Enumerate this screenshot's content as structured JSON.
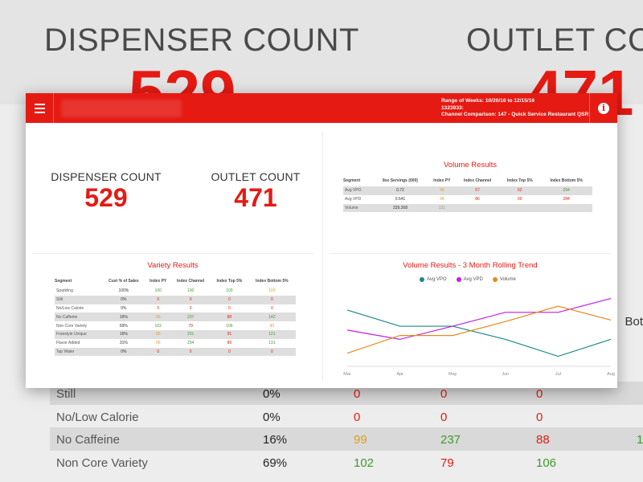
{
  "background": {
    "dispenser_title": "DISPENSER COUNT",
    "dispenser_value": "529",
    "outlet_title": "OUTLET COU",
    "outlet_value": "471",
    "side_header": "Bot",
    "rows": [
      {
        "label": "Still",
        "c1": "0%",
        "c2": "0",
        "c3": "0",
        "c4": "0",
        "c5": "",
        "shaded": true
      },
      {
        "label": "No/Low Calorie",
        "c1": "0%",
        "c2": "0",
        "c3": "0",
        "c4": "0",
        "c5": "",
        "shaded": false
      },
      {
        "label": "No Caffeine",
        "c1": "16%",
        "c2": "99",
        "c3": "237",
        "c4": "88",
        "c5": "1",
        "shaded": true
      },
      {
        "label": "Non Core Variety",
        "c1": "69%",
        "c2": "102",
        "c3": "79",
        "c4": "106",
        "c5": "",
        "shaded": false
      }
    ]
  },
  "header": {
    "range_line": "Range of Weeks: 10/20/16 to 12/15/16",
    "id_line": "1323933:",
    "channel_line": "Channel Comparison: 147 - Quick Service Restaurant QSR"
  },
  "kpis": {
    "dispenser_label": "DISPENSER COUNT",
    "dispenser_value": "529",
    "outlet_label": "OUTLET COUNT",
    "outlet_value": "471"
  },
  "volume": {
    "title": "Volume Results",
    "headers": [
      "Segment",
      "8oz Servings (000)",
      "Index PY",
      "Index Channel",
      "Index Top 5%",
      "Index Bottom 5%"
    ],
    "rows": [
      {
        "cells": [
          "Avg VPO",
          "0.72",
          "99",
          "57",
          "52",
          "294"
        ],
        "cls": [
          "",
          "",
          "o",
          "r",
          "r",
          "g"
        ],
        "shaded": true
      },
      {
        "cells": [
          "Avg VPD",
          "0.641",
          "94",
          "86",
          "69",
          "284"
        ],
        "cls": [
          "",
          "",
          "o",
          "r",
          "r",
          "r"
        ],
        "shaded": false
      },
      {
        "cells": [
          "Volume",
          "339.268",
          "131",
          "",
          "",
          ""
        ],
        "cls": [
          "",
          "",
          "gr",
          "",
          "",
          ""
        ],
        "shaded": true
      }
    ]
  },
  "variety": {
    "title": "Variety Results",
    "headers": [
      "Segment",
      "Cust % of Sales",
      "Index PY",
      "Index Channel",
      "Index Top 5%",
      "Index Bottom 5%"
    ],
    "rows": [
      {
        "cells": [
          "Sparkling",
          "100%",
          "100",
          "100",
          "100",
          "100"
        ],
        "cls": [
          "",
          "",
          "g",
          "g",
          "g",
          "o"
        ],
        "shaded": false
      },
      {
        "cells": [
          "Still",
          "0%",
          "0",
          "0",
          "0",
          "0"
        ],
        "cls": [
          "",
          "",
          "r",
          "r",
          "r",
          "r"
        ],
        "shaded": true
      },
      {
        "cells": [
          "No/Low Calorie",
          "0%",
          "0",
          "0",
          "0",
          "0"
        ],
        "cls": [
          "",
          "",
          "r",
          "r",
          "r",
          "r"
        ],
        "shaded": false
      },
      {
        "cells": [
          "No Caffeine",
          "16%",
          "99",
          "237",
          "88",
          "142"
        ],
        "cls": [
          "",
          "",
          "o",
          "g",
          "r",
          "g"
        ],
        "shaded": true
      },
      {
        "cells": [
          "Non Core Variety",
          "69%",
          "102",
          "79",
          "106",
          "90"
        ],
        "cls": [
          "",
          "",
          "g",
          "r",
          "g",
          "o"
        ],
        "shaded": false
      },
      {
        "cells": [
          "Freestyle Unique",
          "16%",
          "95",
          "231",
          "91",
          "121"
        ],
        "cls": [
          "",
          "",
          "o",
          "g",
          "r",
          "g"
        ],
        "shaded": true
      },
      {
        "cells": [
          "Flavor Added",
          "31%",
          "96",
          "234",
          "89",
          "131"
        ],
        "cls": [
          "",
          "",
          "o",
          "g",
          "r",
          "g"
        ],
        "shaded": false
      },
      {
        "cells": [
          "Tap Water",
          "0%",
          "0",
          "0",
          "0",
          "0"
        ],
        "cls": [
          "",
          "",
          "r",
          "r",
          "r",
          "r"
        ],
        "shaded": true
      }
    ]
  },
  "trend": {
    "title": "Volume Results - 3 Month Rolling Trend"
  },
  "chart_data": {
    "type": "line",
    "title": "Volume Results - 3 Month Rolling Trend",
    "categories": [
      "Mar",
      "Apr",
      "May",
      "Jun",
      "Jul",
      "Aug"
    ],
    "x_positions": [
      0,
      1,
      2,
      3,
      4,
      5
    ],
    "ylim": [
      0,
      1
    ],
    "legend_position": "top",
    "series": [
      {
        "name": "Avg VPO",
        "color": "#1a8a8a",
        "points": [
          [
            0,
            0.73
          ],
          [
            1,
            0.52
          ],
          [
            2,
            0.52
          ],
          [
            3,
            0.35
          ],
          [
            4,
            0.13
          ],
          [
            5,
            0.35
          ]
        ]
      },
      {
        "name": "Avg VPD",
        "color": "#c21fe0",
        "points": [
          [
            0,
            0.47
          ],
          [
            1,
            0.35
          ],
          [
            2,
            0.52
          ],
          [
            3,
            0.7
          ],
          [
            4,
            0.7
          ],
          [
            5,
            0.88
          ]
        ]
      },
      {
        "name": "Volume",
        "color": "#e88a1a",
        "points": [
          [
            0,
            0.17
          ],
          [
            1,
            0.4
          ],
          [
            2,
            0.4
          ],
          [
            3,
            0.58
          ],
          [
            4,
            0.78
          ],
          [
            5,
            0.6
          ]
        ]
      }
    ]
  },
  "colors": {
    "brand_red": "#e51a13",
    "good": "#3f9a2a",
    "warn": "#e39c19"
  },
  "icons": {
    "menu": "hamburger-icon",
    "info": "info-icon"
  }
}
